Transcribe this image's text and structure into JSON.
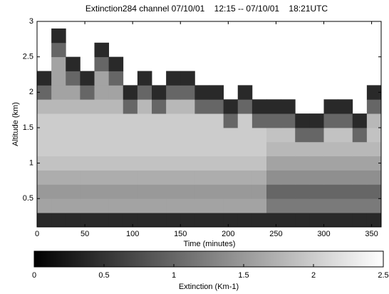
{
  "chart_data": {
    "type": "heatmap",
    "title": "Extinction284 channel 07/10/01    12:15 -- 07/10/01    18:21UTC",
    "xlabel": "Time (minutes)",
    "ylabel": "Altitude (km)",
    "xlim": [
      0,
      360
    ],
    "xticks": [
      0,
      50,
      100,
      150,
      200,
      250,
      300,
      350
    ],
    "ylim": [
      0.1,
      3
    ],
    "yticks": [
      0.5,
      1,
      1.5,
      2,
      2.5,
      3
    ],
    "x_edges": [
      0,
      15,
      30,
      45,
      60,
      75,
      90,
      105,
      120,
      135,
      150,
      165,
      180,
      195,
      210,
      225,
      240,
      255,
      270,
      285,
      300,
      315,
      330,
      345,
      360
    ],
    "y_edges": [
      0.1,
      0.3,
      0.5,
      0.7,
      0.9,
      1.1,
      1.3,
      1.5,
      1.7,
      1.9,
      2.1,
      2.3,
      2.5,
      2.7,
      2.9
    ],
    "z": [
      [
        0.4,
        0.4,
        0.4,
        0.4,
        0.4,
        0.4,
        0.4,
        0.4,
        0.4,
        0.4,
        0.4,
        0.4,
        0.4,
        0.4,
        0.4,
        0.4,
        0.4,
        0.4,
        0.4,
        0.4,
        0.4,
        0.4,
        0.4,
        0.4
      ],
      [
        1.6,
        1.6,
        1.6,
        1.6,
        1.6,
        1.6,
        1.6,
        1.6,
        1.6,
        1.6,
        1.6,
        1.6,
        1.6,
        1.6,
        1.6,
        1.6,
        1.2,
        1.2,
        1.2,
        1.2,
        1.2,
        1.2,
        1.2,
        1.2
      ],
      [
        1.5,
        1.5,
        1.5,
        1.5,
        1.5,
        1.5,
        1.5,
        1.5,
        1.5,
        1.5,
        1.5,
        1.5,
        1.5,
        1.5,
        1.5,
        1.5,
        1.0,
        1.0,
        1.0,
        1.0,
        1.0,
        1.0,
        1.0,
        1.0
      ],
      [
        1.7,
        1.7,
        1.7,
        1.7,
        1.7,
        1.7,
        1.7,
        1.7,
        1.7,
        1.7,
        1.7,
        1.7,
        1.7,
        1.7,
        1.7,
        1.7,
        1.4,
        1.4,
        1.4,
        1.4,
        1.4,
        1.4,
        1.4,
        1.4
      ],
      [
        1.9,
        1.9,
        1.9,
        1.9,
        1.9,
        1.9,
        1.9,
        1.9,
        1.9,
        1.9,
        1.9,
        1.9,
        1.9,
        1.9,
        1.9,
        1.9,
        1.6,
        1.6,
        1.6,
        1.6,
        1.6,
        1.6,
        1.6,
        1.6
      ],
      [
        2.0,
        2.0,
        2.0,
        2.0,
        2.0,
        2.0,
        2.0,
        2.0,
        2.0,
        2.0,
        2.0,
        2.0,
        2.0,
        2.0,
        2.0,
        2.0,
        1.8,
        1.8,
        1.8,
        1.8,
        1.8,
        1.8,
        1.8,
        1.8
      ],
      [
        2.0,
        2.0,
        2.0,
        2.0,
        2.0,
        2.0,
        2.0,
        2.0,
        2.0,
        2.0,
        2.0,
        2.0,
        2.0,
        2.0,
        2.0,
        2.0,
        1.9,
        1.9,
        1.0,
        1.0,
        1.9,
        1.9,
        1.0,
        1.9
      ],
      [
        2.0,
        2.0,
        2.0,
        2.0,
        2.0,
        2.0,
        2.0,
        2.0,
        2.0,
        2.0,
        2.0,
        2.0,
        2.0,
        1.0,
        2.0,
        1.0,
        1.0,
        1.0,
        0.4,
        0.4,
        1.0,
        1.0,
        0.4,
        1.8
      ],
      [
        1.8,
        1.8,
        1.8,
        1.8,
        1.8,
        1.8,
        1.0,
        1.8,
        1.0,
        1.8,
        1.8,
        1.0,
        1.0,
        0.4,
        1.0,
        0.4,
        0.4,
        0.4,
        null,
        null,
        0.4,
        0.4,
        null,
        1.0
      ],
      [
        1.0,
        1.6,
        1.6,
        1.0,
        1.6,
        1.6,
        0.4,
        1.0,
        0.4,
        1.0,
        1.0,
        0.4,
        0.4,
        null,
        0.4,
        null,
        null,
        null,
        null,
        null,
        null,
        null,
        null,
        0.4
      ],
      [
        0.4,
        1.6,
        1.0,
        0.4,
        1.6,
        1.0,
        null,
        0.4,
        null,
        0.4,
        0.4,
        null,
        null,
        null,
        null,
        null,
        null,
        null,
        null,
        null,
        null,
        null,
        null,
        null
      ],
      [
        null,
        1.6,
        0.4,
        null,
        1.0,
        0.4,
        null,
        null,
        null,
        null,
        null,
        null,
        null,
        null,
        null,
        null,
        null,
        null,
        null,
        null,
        null,
        null,
        null,
        null
      ],
      [
        null,
        1.0,
        null,
        null,
        0.4,
        null,
        null,
        null,
        null,
        null,
        null,
        null,
        null,
        null,
        null,
        null,
        null,
        null,
        null,
        null,
        null,
        null,
        null,
        null
      ],
      [
        null,
        0.4,
        null,
        null,
        null,
        null,
        null,
        null,
        null,
        null,
        null,
        null,
        null,
        null,
        null,
        null,
        null,
        null,
        null,
        null,
        null,
        null,
        null,
        null
      ]
    ],
    "colormap": "gray",
    "clim": [
      0,
      2.5
    ],
    "cbar_ticks": [
      0,
      0.5,
      1,
      1.5,
      2,
      2.5
    ],
    "cbar_label": "Extinction (Km-1)"
  }
}
